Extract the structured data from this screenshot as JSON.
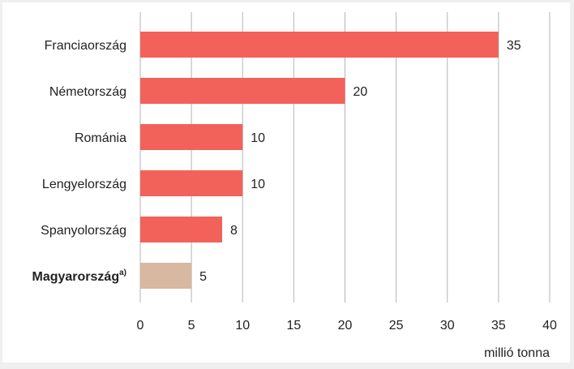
{
  "chart_data": {
    "type": "bar",
    "orientation": "horizontal",
    "categories": [
      "Franciaország",
      "Németország",
      "Románia",
      "Lengyelország",
      "Spanyolország",
      "Magyarország"
    ],
    "category_note": "a)",
    "values": [
      35,
      20,
      10,
      10,
      8,
      5
    ],
    "value_labels": [
      "35",
      "20",
      "10",
      "10",
      "8",
      "5"
    ],
    "highlight_index": 5,
    "colors": {
      "default": "#f2625a",
      "highlight": "#d8b8a0",
      "grid": "#b5b5b5",
      "background": "#efefef"
    },
    "xlim": [
      0,
      40
    ],
    "xticks": [
      "0",
      "5",
      "10",
      "15",
      "20",
      "25",
      "30",
      "35",
      "40"
    ],
    "xlabel": "millió tonna",
    "ylabel": "",
    "title": "",
    "grid": "vertical",
    "legend": "none"
  }
}
